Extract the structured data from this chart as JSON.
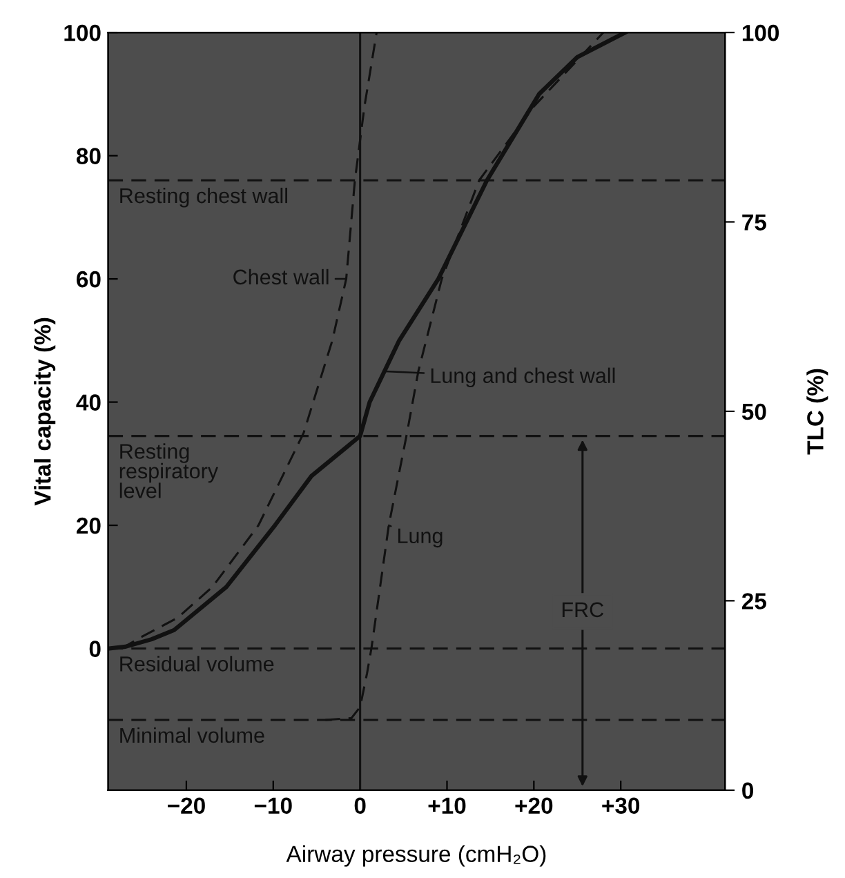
{
  "chart_data": {
    "type": "line",
    "xlabel": "Airway pressure (cmH₂O)",
    "ylabel": "Vital capacity (%)",
    "y2label": "TLC (%)",
    "xlim": [
      -29,
      42
    ],
    "xticks": [
      {
        "value": -20,
        "label": "−20"
      },
      {
        "value": -10,
        "label": "−10"
      },
      0,
      {
        "value": 10,
        "label": "+10"
      },
      {
        "value": 20,
        "label": "+20"
      },
      {
        "value": 30,
        "label": "+30"
      }
    ],
    "ylim": [
      -23,
      100
    ],
    "yticks": [
      0,
      20,
      40,
      60,
      80,
      100
    ],
    "y2lim": [
      0,
      100
    ],
    "y2ticks": [
      0,
      25,
      50,
      75,
      100
    ],
    "grid": false,
    "marker": "none",
    "series": [
      {
        "name": "Chest wall",
        "color": "#111111",
        "line_style": "dashed",
        "x": [
          -27.5,
          -25,
          -21,
          -17,
          -11.7,
          -6.5,
          -3.2,
          -1.6,
          -0.6,
          0.5,
          1.9
        ],
        "values": [
          0,
          2,
          5,
          10,
          20,
          35,
          50,
          60,
          76,
          88,
          100
        ]
      },
      {
        "name": "Lung",
        "color": "#111111",
        "line_style": "dashed",
        "x": [
          -4,
          -1,
          0,
          0.8,
          1.3,
          2.3,
          3.3,
          5.4,
          6.7,
          9.4,
          13.7,
          20,
          28
        ],
        "values": [
          -11.6,
          -11.3,
          -9.5,
          -4,
          0,
          10,
          20,
          35,
          45,
          60,
          76,
          88,
          100
        ]
      },
      {
        "name": "Lung and chest wall",
        "color": "#111111",
        "line_style": "solid",
        "x": [
          -28.9,
          -27,
          -24,
          -21.4,
          -15.4,
          -9.8,
          -5.6,
          0,
          1.1,
          4.5,
          9,
          14.6,
          20.6,
          25,
          30.5
        ],
        "values": [
          0,
          0.3,
          1.5,
          3,
          10,
          20,
          28,
          34.5,
          40,
          50,
          60,
          76,
          90,
          96,
          100
        ]
      }
    ],
    "ref_lines": [
      {
        "axis": "y",
        "value": 76,
        "label": "Resting chest wall",
        "color": "#111111",
        "line_style": "dashed"
      },
      {
        "axis": "y",
        "value": 34.5,
        "label": "Resting\nrespiratory\nlevel",
        "color": "#111111",
        "line_style": "dashed"
      },
      {
        "axis": "y",
        "value": 0,
        "label": "Residual volume",
        "color": "#111111",
        "line_style": "dashed"
      },
      {
        "axis": "y",
        "value": -11.6,
        "label": "Minimal volume",
        "color": "#111111",
        "line_style": "dashed"
      },
      {
        "axis": "x",
        "value": 0,
        "label": null,
        "color": "#111111",
        "line_style": "solid"
      }
    ],
    "annotations": [
      {
        "text": "FRC",
        "x": 25.6,
        "y": 6
      }
    ]
  }
}
